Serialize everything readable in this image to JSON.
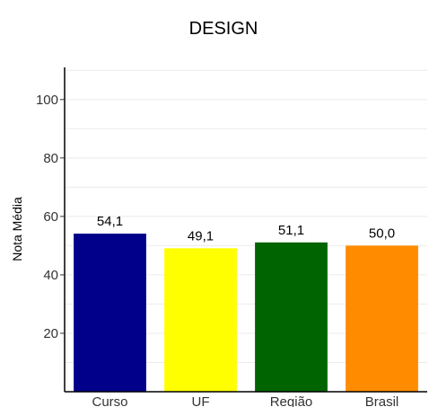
{
  "chart_data": {
    "type": "bar",
    "title": "DESIGN",
    "xlabel": "",
    "ylabel": "Nota Média",
    "categories": [
      "Curso",
      "UF",
      "Região",
      "Brasil"
    ],
    "values": [
      54.1,
      49.1,
      51.1,
      50.0
    ],
    "value_labels": [
      "54,1",
      "49,1",
      "51,1",
      "50,0"
    ],
    "colors": [
      "#00008b",
      "#ffff00",
      "#006400",
      "#ff8c00"
    ],
    "yticks": [
      20,
      40,
      60,
      80,
      100
    ],
    "ylim": [
      0,
      111
    ],
    "grid": true,
    "legend": "none"
  }
}
